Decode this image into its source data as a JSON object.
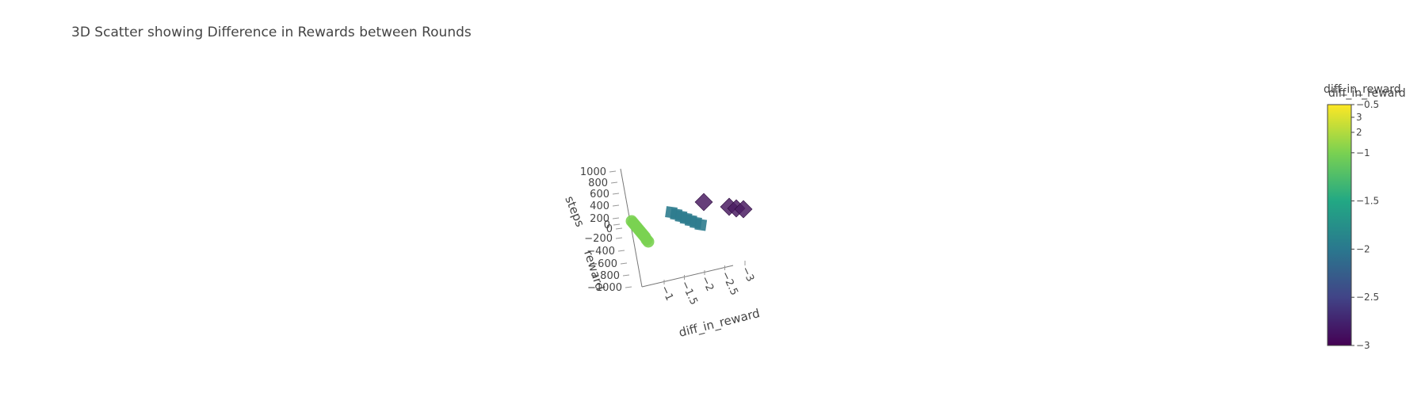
{
  "title": "3D Scatter showing Difference in Rewards between Rounds",
  "chart_data": {
    "type": "scatter3d",
    "title": "3D Scatter showing Difference in Rewards between Rounds",
    "axes": {
      "x": {
        "label": "diff_in_reward",
        "ticks": [
          "−1",
          "−1.5",
          "−2",
          "−2.5",
          "−3"
        ],
        "range": [
          -0.8,
          -3.1
        ]
      },
      "y": {
        "label": "reward",
        "ticks": [
          "−1000",
          "−800",
          "−600",
          "−400",
          "−200",
          "0"
        ],
        "range": [
          -1000,
          0
        ]
      },
      "z": {
        "label": "steps",
        "ticks": [
          "0",
          "200",
          "400",
          "600",
          "800",
          "1000"
        ],
        "range": [
          0,
          1000
        ]
      }
    },
    "series": [
      {
        "symbol": "circle",
        "color": "#7ad151",
        "points": [
          {
            "x": -0.75,
            "y": -400,
            "z": 0
          },
          {
            "x": -0.75,
            "y": -450,
            "z": 0
          },
          {
            "x": -0.75,
            "y": -500,
            "z": 0
          },
          {
            "x": -0.75,
            "y": -550,
            "z": 0
          },
          {
            "x": -0.75,
            "y": -600,
            "z": 0
          },
          {
            "x": -0.75,
            "y": -650,
            "z": 0
          },
          {
            "x": -0.75,
            "y": -700,
            "z": 0
          },
          {
            "x": -0.75,
            "y": -750,
            "z": 0
          },
          {
            "x": -0.75,
            "y": -800,
            "z": 0
          },
          {
            "x": -0.75,
            "y": -850,
            "z": 0
          },
          {
            "x": -0.75,
            "y": -900,
            "z": 0
          }
        ]
      },
      {
        "symbol": "square",
        "color": "#2e7c8e",
        "points": [
          {
            "x": -1.85,
            "y": 0,
            "z": 0
          },
          {
            "x": -1.9,
            "y": -50,
            "z": 0
          },
          {
            "x": -1.95,
            "y": -120,
            "z": 0
          },
          {
            "x": -2.0,
            "y": -160,
            "z": 0
          },
          {
            "x": -2.05,
            "y": -200,
            "z": 0
          },
          {
            "x": -2.1,
            "y": -250,
            "z": 0
          },
          {
            "x": -2.15,
            "y": -280,
            "z": 0
          }
        ]
      },
      {
        "symbol": "diamond",
        "color": "#4b1d63",
        "points": [
          {
            "x": -2.45,
            "y": 80,
            "z": 0
          },
          {
            "x": -3.0,
            "y": -20,
            "z": 0
          },
          {
            "x": -3.1,
            "y": -40,
            "z": 0
          },
          {
            "x": -3.2,
            "y": -60,
            "z": 0
          }
        ]
      }
    ],
    "colorbar": {
      "title": "diff_in_reward",
      "ticks": [
        "−0.5",
        "−1",
        "−1.5",
        "−2",
        "−2.5",
        "−3"
      ],
      "overlay_ticks": [
        "3",
        "2"
      ],
      "colorscale": "viridis",
      "range": [
        -3,
        -0.5
      ]
    }
  }
}
